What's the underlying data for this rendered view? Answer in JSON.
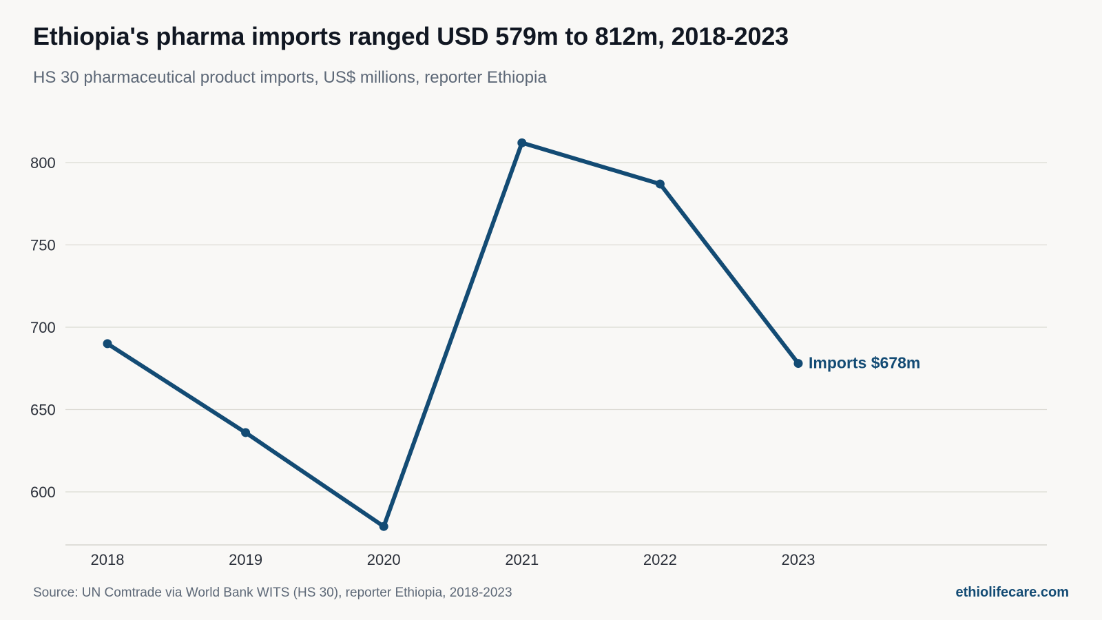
{
  "header": {
    "title": "Ethiopia's pharma imports ranged USD 579m to 812m, 2018-2023",
    "subtitle": "HS 30 pharmaceutical product imports, US$ millions, reporter Ethiopia"
  },
  "footer": {
    "source": "Source: UN Comtrade via World Bank WITS (HS 30), reporter Ethiopia, 2018-2023",
    "site": "ethiolifecare.com"
  },
  "colors": {
    "line": "#134b74",
    "grid": "#dcdad4",
    "axis_text": "#2b303a",
    "background": "#f9f8f6"
  },
  "chart_data": {
    "type": "line",
    "title": "Ethiopia's pharma imports ranged USD 579m to 812m, 2018-2023",
    "subtitle": "HS 30 pharmaceutical product imports, US$ millions, reporter Ethiopia",
    "xlabel": "",
    "ylabel": "",
    "categories": [
      "2018",
      "2019",
      "2020",
      "2021",
      "2022",
      "2023"
    ],
    "series": [
      {
        "values": [
          690,
          636,
          579,
          812,
          787,
          678
        ],
        "end_label": "Imports $678m"
      }
    ],
    "yticks": [
      600,
      650,
      700,
      750,
      800
    ],
    "ylim": [
      567,
      829
    ],
    "grid": true,
    "legend": "none"
  }
}
